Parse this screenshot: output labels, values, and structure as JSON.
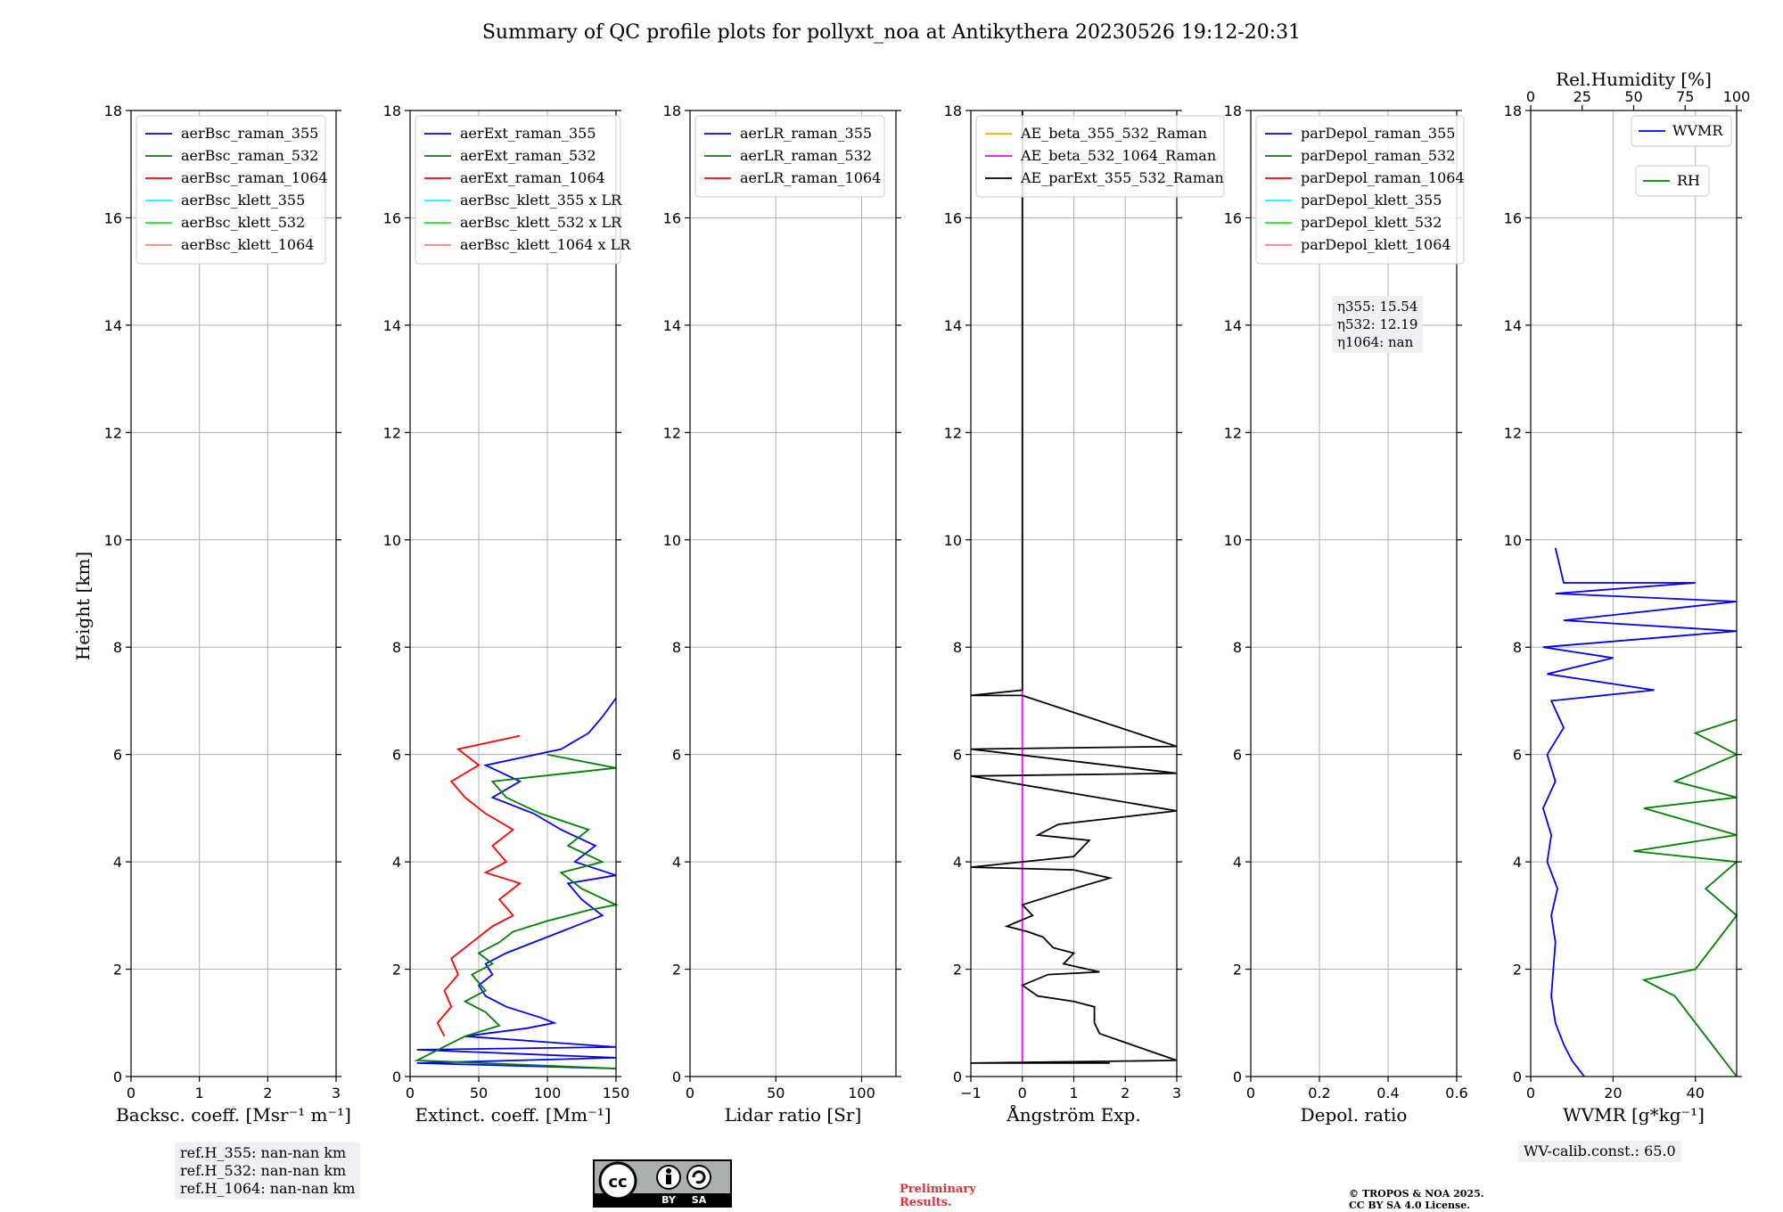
{
  "title": "Summary of QC profile plots for pollyxt_noa at Antikythera 20230526 19:12-20:31",
  "ylabel": "Height [km]",
  "colors": {
    "blue": "#0000ff",
    "green": "#008000",
    "red": "#ff0000",
    "cyan": "#00ffff",
    "lime": "#00ff00",
    "salmon": "#ff8080",
    "orange": "#ffa500",
    "magenta": "#ff00ff",
    "black": "#000000"
  },
  "ref_heights": [
    "ref.H_355: nan-nan km",
    "ref.H_532: nan-nan km",
    "ref.H_1064: nan-nan km"
  ],
  "eta": [
    "η355: 15.54",
    "η532: 12.19",
    "η1064: nan"
  ],
  "wv_calib": "WV-calib.const.: 65.0",
  "preliminary": [
    "Preliminary",
    "Results."
  ],
  "copyright": [
    "© TROPOS & NOA 2025.",
    "CC BY SA 4.0 License."
  ],
  "license_badge": [
    "cc",
    "BY",
    "SA"
  ],
  "chart_data": [
    {
      "type": "line",
      "xlabel": "Backsc. coeff. [Msr⁻¹ m⁻¹]",
      "xlim": [
        0,
        3
      ],
      "ylim": [
        0,
        18
      ],
      "xticks": [
        0,
        1,
        2,
        3
      ],
      "yticks": [
        0,
        2,
        4,
        6,
        8,
        10,
        12,
        14,
        16,
        18
      ],
      "grid": true,
      "legend_position": "top-left",
      "series": [
        {
          "name": "aerBsc_raman_355",
          "color": "blue",
          "points": []
        },
        {
          "name": "aerBsc_raman_532",
          "color": "green",
          "points": []
        },
        {
          "name": "aerBsc_raman_1064",
          "color": "red",
          "points": []
        },
        {
          "name": "aerBsc_klett_355",
          "color": "cyan",
          "points": []
        },
        {
          "name": "aerBsc_klett_532",
          "color": "lime",
          "points": []
        },
        {
          "name": "aerBsc_klett_1064",
          "color": "salmon",
          "points": []
        }
      ]
    },
    {
      "type": "line",
      "xlabel": "Extinct. coeff. [Mm⁻¹]",
      "xlim": [
        0,
        150
      ],
      "ylim": [
        0,
        18
      ],
      "xticks": [
        0,
        50,
        100,
        150
      ],
      "yticks": [
        0,
        2,
        4,
        6,
        8,
        10,
        12,
        14,
        16,
        18
      ],
      "grid": true,
      "legend_position": "top-left",
      "series": [
        {
          "name": "aerExt_raman_355",
          "color": "blue",
          "points": [
            [
              150,
              0.15
            ],
            [
              5,
              0.25
            ],
            [
              150,
              0.35
            ],
            [
              5,
              0.5
            ],
            [
              150,
              0.55
            ],
            [
              40,
              0.75
            ],
            [
              85,
              0.9
            ],
            [
              105,
              1.0
            ],
            [
              95,
              1.1
            ],
            [
              70,
              1.3
            ],
            [
              55,
              1.5
            ],
            [
              50,
              1.7
            ],
            [
              60,
              1.9
            ],
            [
              55,
              2.1
            ],
            [
              70,
              2.3
            ],
            [
              90,
              2.5
            ],
            [
              110,
              2.7
            ],
            [
              140,
              3.0
            ],
            [
              125,
              3.3
            ],
            [
              115,
              3.6
            ],
            [
              150,
              3.75
            ],
            [
              120,
              4.0
            ],
            [
              135,
              4.3
            ],
            [
              110,
              4.6
            ],
            [
              90,
              4.9
            ],
            [
              60,
              5.2
            ],
            [
              80,
              5.5
            ],
            [
              55,
              5.8
            ],
            [
              110,
              6.1
            ],
            [
              130,
              6.4
            ],
            [
              140,
              6.7
            ],
            [
              150,
              7.05
            ]
          ]
        },
        {
          "name": "aerExt_raman_532",
          "color": "green",
          "points": [
            [
              150,
              0.15
            ],
            [
              5,
              0.3
            ],
            [
              40,
              0.75
            ],
            [
              65,
              0.95
            ],
            [
              55,
              1.2
            ],
            [
              40,
              1.4
            ],
            [
              55,
              1.6
            ],
            [
              45,
              1.9
            ],
            [
              60,
              2.1
            ],
            [
              50,
              2.3
            ],
            [
              65,
              2.5
            ],
            [
              75,
              2.7
            ],
            [
              100,
              2.9
            ],
            [
              130,
              3.1
            ],
            [
              150,
              3.2
            ],
            [
              125,
              3.5
            ],
            [
              110,
              3.8
            ],
            [
              140,
              4.0
            ],
            [
              115,
              4.3
            ],
            [
              130,
              4.6
            ],
            [
              95,
              4.9
            ],
            [
              70,
              5.2
            ],
            [
              60,
              5.5
            ],
            [
              150,
              5.75
            ],
            [
              100,
              6.0
            ]
          ]
        },
        {
          "name": "aerExt_raman_1064",
          "color": "red",
          "points": [
            [
              25,
              0.75
            ],
            [
              20,
              1.0
            ],
            [
              30,
              1.3
            ],
            [
              25,
              1.6
            ],
            [
              35,
              1.9
            ],
            [
              30,
              2.2
            ],
            [
              45,
              2.5
            ],
            [
              60,
              2.8
            ],
            [
              75,
              3.0
            ],
            [
              65,
              3.3
            ],
            [
              80,
              3.6
            ],
            [
              55,
              3.8
            ],
            [
              70,
              4.0
            ],
            [
              60,
              4.3
            ],
            [
              75,
              4.6
            ],
            [
              55,
              4.9
            ],
            [
              40,
              5.2
            ],
            [
              30,
              5.5
            ],
            [
              50,
              5.8
            ],
            [
              35,
              6.1
            ],
            [
              80,
              6.35
            ]
          ]
        },
        {
          "name": "aerBsc_klett_355 x LR",
          "color": "cyan",
          "points": []
        },
        {
          "name": "aerBsc_klett_532 x LR",
          "color": "lime",
          "points": []
        },
        {
          "name": "aerBsc_klett_1064 x LR",
          "color": "salmon",
          "points": []
        }
      ]
    },
    {
      "type": "line",
      "xlabel": "Lidar ratio [Sr]",
      "xlim": [
        0,
        120
      ],
      "ylim": [
        0,
        18
      ],
      "xticks": [
        0,
        50,
        100
      ],
      "yticks": [
        0,
        2,
        4,
        6,
        8,
        10,
        12,
        14,
        16,
        18
      ],
      "grid": true,
      "legend_position": "top-left",
      "series": [
        {
          "name": "aerLR_raman_355",
          "color": "blue",
          "points": []
        },
        {
          "name": "aerLR_raman_532",
          "color": "green",
          "points": []
        },
        {
          "name": "aerLR_raman_1064",
          "color": "red",
          "points": []
        }
      ]
    },
    {
      "type": "line",
      "xlabel": "Ångström Exp.",
      "xlim": [
        -1,
        3
      ],
      "ylim": [
        0,
        18
      ],
      "xticks": [
        -1,
        0,
        1,
        2,
        3
      ],
      "yticks": [
        0,
        2,
        4,
        6,
        8,
        10,
        12,
        14,
        16,
        18
      ],
      "grid": true,
      "legend_position": "top-left",
      "series": [
        {
          "name": "AE_beta_355_532_Raman",
          "color": "orange",
          "points": []
        },
        {
          "name": "AE_beta_532_1064_Raman",
          "color": "magenta",
          "points": [
            [
              0,
              0.25
            ],
            [
              0,
              18
            ]
          ]
        },
        {
          "name": "AE_parExt_355_532_Raman",
          "color": "black",
          "points": [
            [
              1.7,
              0.25
            ],
            [
              -1,
              0.25
            ],
            [
              3,
              0.3
            ],
            [
              1.5,
              0.8
            ],
            [
              1.4,
              1.0
            ],
            [
              1.4,
              1.3
            ],
            [
              1.0,
              1.4
            ],
            [
              0.3,
              1.5
            ],
            [
              0,
              1.7
            ],
            [
              0.5,
              1.9
            ],
            [
              1.5,
              1.95
            ],
            [
              0.8,
              2.1
            ],
            [
              1.0,
              2.3
            ],
            [
              0.6,
              2.4
            ],
            [
              0.4,
              2.6
            ],
            [
              0.1,
              2.7
            ],
            [
              -0.3,
              2.8
            ],
            [
              0.2,
              3.0
            ],
            [
              0.0,
              3.2
            ],
            [
              1.0,
              3.5
            ],
            [
              1.7,
              3.7
            ],
            [
              1.0,
              3.85
            ],
            [
              -1,
              3.9
            ],
            [
              1.0,
              4.1
            ],
            [
              1.3,
              4.4
            ],
            [
              0.3,
              4.5
            ],
            [
              0.7,
              4.7
            ],
            [
              3,
              4.95
            ],
            [
              -1,
              5.6
            ],
            [
              3,
              5.65
            ],
            [
              -1,
              6.1
            ],
            [
              3,
              6.15
            ],
            [
              0,
              7.1
            ],
            [
              -1,
              7.1
            ],
            [
              0,
              7.2
            ],
            [
              0,
              18
            ]
          ]
        }
      ]
    },
    {
      "type": "line",
      "xlabel": "Depol. ratio",
      "xlim": [
        0,
        0.6
      ],
      "ylim": [
        0,
        18
      ],
      "xticks": [
        0.0,
        0.2,
        0.4,
        0.6
      ],
      "yticks": [
        0,
        2,
        4,
        6,
        8,
        10,
        12,
        14,
        16,
        18
      ],
      "grid": true,
      "legend_position": "top-left",
      "series": [
        {
          "name": "parDepol_raman_355",
          "color": "blue",
          "points": []
        },
        {
          "name": "parDepol_raman_532",
          "color": "green",
          "points": []
        },
        {
          "name": "parDepol_raman_1064",
          "color": "red",
          "points": []
        },
        {
          "name": "parDepol_klett_355",
          "color": "cyan",
          "points": []
        },
        {
          "name": "parDepol_klett_532",
          "color": "lime",
          "points": []
        },
        {
          "name": "parDepol_klett_1064",
          "color": "salmon",
          "points": []
        }
      ]
    },
    {
      "type": "line",
      "xlabel": "WVMR [g*kg⁻¹]",
      "x2label": "Rel.Humidity [%]",
      "xlim": [
        0,
        50
      ],
      "x2lim": [
        0,
        100
      ],
      "ylim": [
        0,
        18
      ],
      "xticks": [
        0,
        20,
        40
      ],
      "x2ticks": [
        0,
        25,
        50,
        75,
        100
      ],
      "yticks": [
        0,
        2,
        4,
        6,
        8,
        10,
        12,
        14,
        16,
        18
      ],
      "grid": true,
      "legend_position": "top-right",
      "series": [
        {
          "name": "WVMR",
          "color": "blue",
          "points": [
            [
              13,
              0.0
            ],
            [
              10,
              0.3
            ],
            [
              8,
              0.6
            ],
            [
              6,
              1.0
            ],
            [
              5,
              1.5
            ],
            [
              5.5,
              2.0
            ],
            [
              6,
              2.5
            ],
            [
              5,
              3.0
            ],
            [
              6.5,
              3.5
            ],
            [
              4,
              4.0
            ],
            [
              5,
              4.5
            ],
            [
              3,
              5.0
            ],
            [
              6,
              5.5
            ],
            [
              4,
              6.0
            ],
            [
              8,
              6.5
            ],
            [
              5,
              7.0
            ],
            [
              30,
              7.2
            ],
            [
              4,
              7.5
            ],
            [
              20,
              7.8
            ],
            [
              3,
              8.0
            ],
            [
              50,
              8.3
            ],
            [
              8,
              8.5
            ],
            [
              50,
              8.85
            ],
            [
              6,
              9.0
            ],
            [
              40,
              9.2
            ],
            [
              8,
              9.2
            ],
            [
              6,
              9.85
            ]
          ]
        },
        {
          "name": "RH",
          "color": "green",
          "points": [
            [
              100,
              0.0
            ],
            [
              90,
              0.5
            ],
            [
              80,
              1.0
            ],
            [
              70,
              1.5
            ],
            [
              55,
              1.8
            ],
            [
              80,
              2.0
            ],
            [
              90,
              2.5
            ],
            [
              100,
              3.0
            ],
            [
              85,
              3.5
            ],
            [
              100,
              4.0
            ],
            [
              50,
              4.2
            ],
            [
              100,
              4.5
            ],
            [
              55,
              5.0
            ],
            [
              100,
              5.2
            ],
            [
              70,
              5.5
            ],
            [
              100,
              6.0
            ],
            [
              80,
              6.4
            ],
            [
              100,
              6.65
            ]
          ]
        }
      ]
    }
  ]
}
